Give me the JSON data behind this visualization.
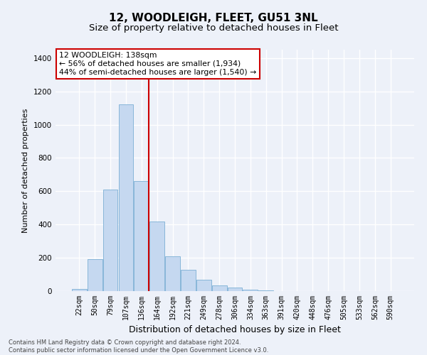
{
  "title": "12, WOODLEIGH, FLEET, GU51 3NL",
  "subtitle": "Size of property relative to detached houses in Fleet",
  "xlabel": "Distribution of detached houses by size in Fleet",
  "ylabel": "Number of detached properties",
  "categories": [
    "22sqm",
    "50sqm",
    "79sqm",
    "107sqm",
    "136sqm",
    "164sqm",
    "192sqm",
    "221sqm",
    "249sqm",
    "278sqm",
    "306sqm",
    "334sqm",
    "363sqm",
    "391sqm",
    "420sqm",
    "448sqm",
    "476sqm",
    "505sqm",
    "533sqm",
    "562sqm",
    "590sqm"
  ],
  "values": [
    12,
    190,
    610,
    1120,
    660,
    420,
    210,
    130,
    70,
    32,
    22,
    10,
    5,
    0,
    0,
    0,
    0,
    0,
    0,
    0,
    0
  ],
  "bar_color": "#c5d8f0",
  "bar_edge_color": "#7bafd4",
  "bar_edge_width": 0.6,
  "vline_index": 4,
  "vline_color": "#cc0000",
  "annotation_line1": "12 WOODLEIGH: 138sqm",
  "annotation_line2": "← 56% of detached houses are smaller (1,934)",
  "annotation_line3": "44% of semi-detached houses are larger (1,540) →",
  "annotation_box_facecolor": "#ffffff",
  "annotation_box_edgecolor": "#cc0000",
  "ylim": [
    0,
    1450
  ],
  "yticks": [
    0,
    200,
    400,
    600,
    800,
    1000,
    1200,
    1400
  ],
  "bg_color": "#edf1f9",
  "plot_bg_color": "#edf1f9",
  "grid_color": "#ffffff",
  "footer_line1": "Contains HM Land Registry data © Crown copyright and database right 2024.",
  "footer_line2": "Contains public sector information licensed under the Open Government Licence v3.0.",
  "title_fontsize": 11,
  "subtitle_fontsize": 9.5,
  "xlabel_fontsize": 9,
  "ylabel_fontsize": 8,
  "tick_fontsize": 7,
  "annotation_fontsize": 7.8
}
